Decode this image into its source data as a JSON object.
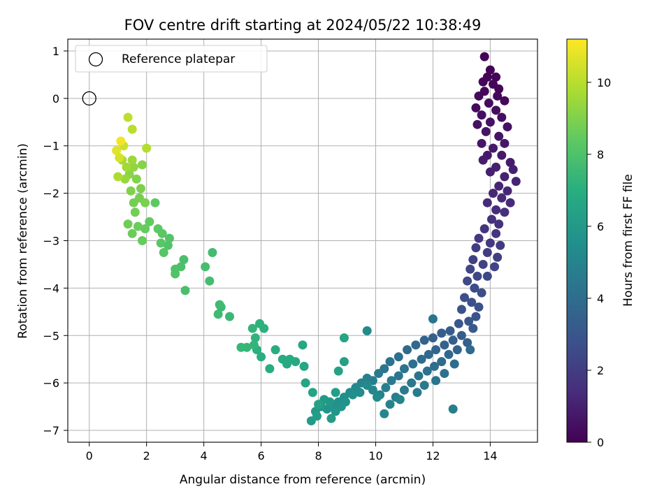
{
  "chart_data": {
    "type": "scatter",
    "title": "FOV centre drift starting at 2024/05/22 10:38:49",
    "xlabel": "Angular distance from reference (arcmin)",
    "ylabel": "Rotation from reference (arcmin)",
    "xlim": [
      -0.75,
      15.65
    ],
    "ylim": [
      -7.25,
      1.25
    ],
    "xticks": [
      0,
      2,
      4,
      6,
      8,
      10,
      12,
      14
    ],
    "yticks": [
      1,
      0,
      -1,
      -2,
      -3,
      -4,
      -5,
      -6,
      -7
    ],
    "grid": true,
    "legend": {
      "position": "top-left",
      "entries": [
        "Reference platepar"
      ]
    },
    "reference_point": {
      "x": 0,
      "y": 0
    },
    "colorbar": {
      "label": "Hours from first FF file",
      "range": [
        0,
        11.2
      ],
      "ticks": [
        0,
        2,
        4,
        6,
        8,
        10
      ],
      "colormap": "viridis"
    },
    "series": [
      {
        "color_by": "hours",
        "points": [
          [
            13.8,
            0.88,
            0.02
          ],
          [
            14.0,
            0.6,
            0.05
          ],
          [
            13.9,
            0.45,
            0.1
          ],
          [
            14.2,
            0.45,
            0.1
          ],
          [
            13.75,
            0.35,
            0.15
          ],
          [
            14.1,
            0.3,
            0.15
          ],
          [
            14.3,
            0.2,
            0.2
          ],
          [
            13.8,
            0.15,
            0.2
          ],
          [
            14.25,
            0.05,
            0.25
          ],
          [
            13.6,
            0.05,
            0.25
          ],
          [
            14.5,
            -0.05,
            0.3
          ],
          [
            13.95,
            -0.1,
            0.35
          ],
          [
            13.5,
            -0.2,
            0.35
          ],
          [
            14.2,
            -0.25,
            0.4
          ],
          [
            13.7,
            -0.35,
            0.45
          ],
          [
            14.4,
            -0.4,
            0.45
          ],
          [
            13.55,
            -0.55,
            0.5
          ],
          [
            14.0,
            -0.5,
            0.5
          ],
          [
            14.6,
            -0.6,
            0.55
          ],
          [
            13.85,
            -0.7,
            0.6
          ],
          [
            14.3,
            -0.8,
            0.6
          ],
          [
            13.7,
            -0.95,
            0.7
          ],
          [
            14.5,
            -0.95,
            0.7
          ],
          [
            14.1,
            -1.05,
            0.75
          ],
          [
            13.9,
            -1.2,
            0.8
          ],
          [
            14.4,
            -1.2,
            0.8
          ],
          [
            13.75,
            -1.3,
            0.85
          ],
          [
            14.7,
            -1.35,
            0.9
          ],
          [
            14.2,
            -1.45,
            0.95
          ],
          [
            14.0,
            -1.55,
            1.0
          ],
          [
            14.8,
            -1.5,
            1.0
          ],
          [
            14.5,
            -1.65,
            1.05
          ],
          [
            14.9,
            -1.75,
            1.1
          ],
          [
            14.3,
            -1.85,
            1.15
          ],
          [
            14.6,
            -1.95,
            1.2
          ],
          [
            14.1,
            -2.0,
            1.25
          ],
          [
            14.4,
            -2.1,
            1.3
          ],
          [
            13.9,
            -2.2,
            1.35
          ],
          [
            14.7,
            -2.2,
            1.35
          ],
          [
            14.2,
            -2.35,
            1.45
          ],
          [
            14.5,
            -2.4,
            1.5
          ],
          [
            14.05,
            -2.55,
            1.55
          ],
          [
            14.3,
            -2.65,
            1.6
          ],
          [
            13.8,
            -2.75,
            1.7
          ],
          [
            14.2,
            -2.85,
            1.75
          ],
          [
            13.6,
            -2.95,
            1.8
          ],
          [
            14.0,
            -3.05,
            1.85
          ],
          [
            14.35,
            -3.1,
            1.9
          ],
          [
            13.5,
            -3.15,
            1.95
          ],
          [
            13.9,
            -3.25,
            2.0
          ],
          [
            14.25,
            -3.35,
            2.05
          ],
          [
            13.4,
            -3.4,
            2.1
          ],
          [
            13.75,
            -3.5,
            2.2
          ],
          [
            14.15,
            -3.55,
            2.25
          ],
          [
            13.3,
            -3.6,
            2.3
          ],
          [
            13.55,
            -3.75,
            2.35
          ],
          [
            13.9,
            -3.75,
            2.4
          ],
          [
            13.2,
            -3.85,
            2.45
          ],
          [
            13.45,
            -4.0,
            2.55
          ],
          [
            13.7,
            -4.1,
            2.6
          ],
          [
            13.1,
            -4.2,
            2.7
          ],
          [
            13.35,
            -4.3,
            2.75
          ],
          [
            13.6,
            -4.4,
            2.8
          ],
          [
            13.0,
            -4.45,
            2.85
          ],
          [
            13.5,
            -4.6,
            2.9
          ],
          [
            13.25,
            -4.7,
            3.0
          ],
          [
            12.9,
            -4.75,
            3.05
          ],
          [
            13.4,
            -4.85,
            3.1
          ],
          [
            12.6,
            -4.9,
            3.2
          ],
          [
            13.0,
            -5.0,
            3.25
          ],
          [
            12.3,
            -4.95,
            3.3
          ],
          [
            12.7,
            -5.1,
            3.35
          ],
          [
            13.2,
            -5.15,
            3.4
          ],
          [
            12.0,
            -5.05,
            3.45
          ],
          [
            12.4,
            -5.2,
            3.5
          ],
          [
            12.85,
            -5.3,
            3.55
          ],
          [
            11.7,
            -5.1,
            3.6
          ],
          [
            12.1,
            -5.3,
            3.65
          ],
          [
            12.55,
            -5.4,
            3.7
          ],
          [
            11.4,
            -5.2,
            3.75
          ],
          [
            11.85,
            -5.4,
            3.8
          ],
          [
            12.3,
            -5.55,
            3.85
          ],
          [
            13.3,
            -5.3,
            3.85
          ],
          [
            11.1,
            -5.3,
            3.9
          ],
          [
            11.6,
            -5.5,
            3.95
          ],
          [
            12.05,
            -5.65,
            4.0
          ],
          [
            12.75,
            -5.6,
            4.0
          ],
          [
            10.8,
            -5.45,
            4.05
          ],
          [
            11.3,
            -5.6,
            4.1
          ],
          [
            11.8,
            -5.75,
            4.15
          ],
          [
            12.4,
            -5.8,
            4.15
          ],
          [
            10.5,
            -5.55,
            4.2
          ],
          [
            11.0,
            -5.7,
            4.25
          ],
          [
            11.5,
            -5.85,
            4.3
          ],
          [
            12.1,
            -5.95,
            4.3
          ],
          [
            12.0,
            -4.65,
            4.3
          ],
          [
            10.3,
            -5.7,
            4.35
          ],
          [
            10.8,
            -5.85,
            4.4
          ],
          [
            11.25,
            -6.0,
            4.45
          ],
          [
            11.7,
            -6.05,
            4.5
          ],
          [
            10.1,
            -5.8,
            4.5
          ],
          [
            10.55,
            -5.95,
            4.55
          ],
          [
            11.0,
            -6.15,
            4.6
          ],
          [
            11.45,
            -6.2,
            4.65
          ],
          [
            9.9,
            -5.95,
            4.7
          ],
          [
            10.35,
            -6.1,
            4.75
          ],
          [
            10.7,
            -6.3,
            4.8
          ],
          [
            12.7,
            -6.55,
            4.8
          ],
          [
            9.7,
            -5.9,
            4.85
          ],
          [
            10.15,
            -6.25,
            4.9
          ],
          [
            10.5,
            -6.45,
            4.95
          ],
          [
            10.85,
            -6.35,
            5.0
          ],
          [
            9.5,
            -6.0,
            5.05
          ],
          [
            9.9,
            -6.15,
            5.1
          ],
          [
            10.3,
            -6.65,
            5.15
          ],
          [
            9.3,
            -6.1,
            5.2
          ],
          [
            9.7,
            -6.05,
            5.25
          ],
          [
            10.05,
            -6.3,
            5.3
          ],
          [
            9.1,
            -6.2,
            5.35
          ],
          [
            9.45,
            -6.2,
            5.4
          ],
          [
            9.7,
            -4.9,
            5.35
          ],
          [
            8.9,
            -6.3,
            5.5
          ],
          [
            9.2,
            -6.25,
            5.55
          ],
          [
            8.7,
            -6.4,
            5.6
          ],
          [
            8.95,
            -6.4,
            5.65
          ],
          [
            8.5,
            -6.5,
            5.7
          ],
          [
            8.8,
            -6.5,
            5.75
          ],
          [
            8.3,
            -6.55,
            5.8
          ],
          [
            8.6,
            -6.6,
            5.85
          ],
          [
            8.1,
            -6.5,
            5.9
          ],
          [
            8.4,
            -6.4,
            5.95
          ],
          [
            7.9,
            -6.6,
            6.0
          ],
          [
            8.2,
            -6.35,
            6.05
          ],
          [
            7.75,
            -6.8,
            6.1
          ],
          [
            8.45,
            -6.75,
            6.15
          ],
          [
            7.95,
            -6.7,
            6.2
          ],
          [
            8.6,
            -6.2,
            6.25
          ],
          [
            8.9,
            -5.55,
            6.3
          ],
          [
            8.7,
            -5.75,
            6.35
          ],
          [
            8.0,
            -6.45,
            6.4
          ],
          [
            7.8,
            -6.2,
            6.45
          ],
          [
            8.9,
            -5.05,
            6.5
          ],
          [
            7.55,
            -6.0,
            6.55
          ],
          [
            7.5,
            -5.65,
            6.6
          ],
          [
            7.45,
            -5.2,
            6.65
          ],
          [
            7.2,
            -5.55,
            6.7
          ],
          [
            6.9,
            -5.6,
            6.75
          ],
          [
            7.0,
            -5.5,
            6.8
          ],
          [
            6.75,
            -5.5,
            6.85
          ],
          [
            6.5,
            -5.3,
            6.9
          ],
          [
            6.3,
            -5.7,
            6.95
          ],
          [
            6.0,
            -5.45,
            7.0
          ],
          [
            5.85,
            -5.3,
            7.05
          ],
          [
            6.1,
            -4.85,
            7.1
          ],
          [
            5.95,
            -4.75,
            7.15
          ],
          [
            5.8,
            -5.05,
            7.2
          ],
          [
            5.7,
            -4.85,
            7.25
          ],
          [
            5.75,
            -5.2,
            7.3
          ],
          [
            5.5,
            -5.25,
            7.35
          ],
          [
            5.3,
            -5.25,
            7.4
          ],
          [
            4.9,
            -4.6,
            7.5
          ],
          [
            4.6,
            -4.4,
            7.55
          ],
          [
            4.5,
            -4.55,
            7.6
          ],
          [
            4.55,
            -4.35,
            7.65
          ],
          [
            4.3,
            -3.25,
            7.7
          ],
          [
            4.2,
            -3.85,
            7.75
          ],
          [
            4.05,
            -3.55,
            7.8
          ],
          [
            3.35,
            -4.05,
            7.85
          ],
          [
            3.3,
            -3.4,
            7.9
          ],
          [
            3.2,
            -3.55,
            7.95
          ],
          [
            3.0,
            -3.6,
            8.0
          ],
          [
            3.0,
            -3.7,
            8.05
          ],
          [
            2.75,
            -3.1,
            8.1
          ],
          [
            2.8,
            -2.95,
            8.15
          ],
          [
            2.6,
            -3.25,
            8.2
          ],
          [
            2.5,
            -3.05,
            8.25
          ],
          [
            2.55,
            -2.85,
            8.3
          ],
          [
            2.4,
            -2.75,
            8.35
          ],
          [
            2.3,
            -2.2,
            8.4
          ],
          [
            2.1,
            -2.6,
            8.45
          ],
          [
            1.95,
            -2.75,
            8.5
          ],
          [
            1.85,
            -3.0,
            8.55
          ],
          [
            1.7,
            -2.7,
            8.6
          ],
          [
            1.5,
            -2.85,
            8.65
          ],
          [
            1.35,
            -2.65,
            8.7
          ],
          [
            1.6,
            -2.4,
            8.75
          ],
          [
            1.55,
            -2.2,
            8.8
          ],
          [
            1.75,
            -2.1,
            8.85
          ],
          [
            1.95,
            -2.2,
            8.9
          ],
          [
            1.8,
            -1.9,
            8.95
          ],
          [
            1.45,
            -1.95,
            9.0
          ],
          [
            1.65,
            -1.7,
            9.05
          ],
          [
            1.85,
            -1.4,
            9.1
          ],
          [
            1.4,
            -1.6,
            9.2
          ],
          [
            1.55,
            -1.45,
            9.3
          ],
          [
            1.25,
            -1.7,
            9.4
          ],
          [
            1.5,
            -1.3,
            9.5
          ],
          [
            1.3,
            -1.45,
            9.6
          ],
          [
            1.15,
            -1.3,
            9.7
          ],
          [
            1.0,
            -1.65,
            9.8
          ],
          [
            2.0,
            -1.05,
            9.9
          ],
          [
            1.5,
            -0.65,
            10.0
          ],
          [
            1.35,
            -0.4,
            10.1
          ],
          [
            1.2,
            -1.0,
            10.3
          ],
          [
            1.05,
            -1.25,
            10.5
          ],
          [
            0.95,
            -1.1,
            10.7
          ],
          [
            1.1,
            -0.9,
            11.0
          ]
        ]
      }
    ]
  }
}
